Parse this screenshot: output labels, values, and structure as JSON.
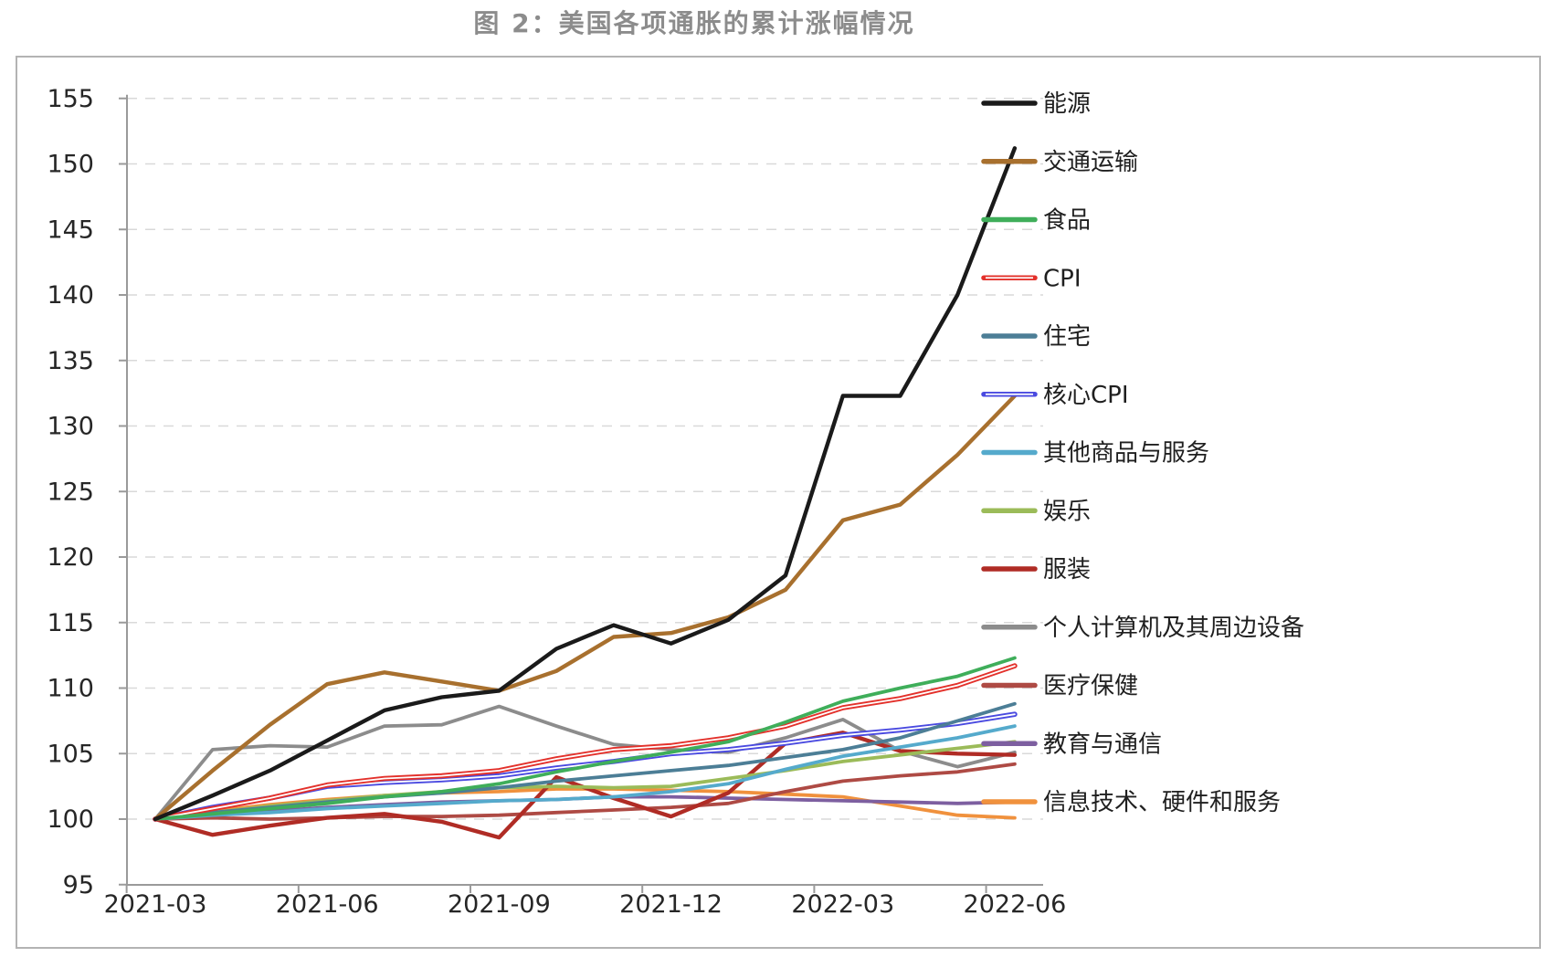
{
  "figure": {
    "title": "图 2：美国各项通胀的累计涨幅情况"
  },
  "chart_data": {
    "type": "line",
    "title": "图 2：美国各项通胀的累计涨幅情况",
    "xlabel": "",
    "ylabel": "",
    "x": [
      "2021-03",
      "2021-04",
      "2021-05",
      "2021-06",
      "2021-07",
      "2021-08",
      "2021-09",
      "2021-10",
      "2021-11",
      "2021-12",
      "2022-01",
      "2022-02",
      "2022-03",
      "2022-04",
      "2022-05",
      "2022-06"
    ],
    "x_tick_labels": [
      "2021-03",
      "2021-06",
      "2021-09",
      "2021-12",
      "2022-03",
      "2022-06"
    ],
    "y_ticks": [
      95,
      100,
      105,
      110,
      115,
      120,
      125,
      130,
      135,
      140,
      145,
      150,
      155
    ],
    "ylim": [
      95,
      155
    ],
    "grid": "horizontal-dashed",
    "legend_position": "right",
    "series": [
      {
        "id": "energy",
        "name": "能源",
        "color": "#1a1a1a",
        "style": "solid",
        "values": [
          100,
          101.8,
          103.7,
          106.0,
          108.3,
          109.3,
          109.8,
          113.0,
          114.8,
          113.4,
          115.2,
          118.6,
          132.3,
          132.3,
          140.0,
          151.2
        ]
      },
      {
        "id": "transport",
        "name": "交通运输",
        "color": "#a8702e",
        "style": "solid",
        "values": [
          100,
          103.7,
          107.2,
          110.3,
          111.2,
          110.5,
          109.8,
          111.3,
          113.9,
          114.2,
          115.4,
          117.5,
          122.8,
          124.0,
          127.8,
          132.3
        ]
      },
      {
        "id": "food",
        "name": "食品",
        "color": "#3fae5a",
        "style": "solid",
        "values": [
          100,
          100.4,
          100.8,
          101.2,
          101.7,
          102.1,
          102.7,
          103.6,
          104.4,
          105.1,
          105.9,
          107.4,
          109.0,
          110.0,
          110.9,
          112.3
        ]
      },
      {
        "id": "cpi",
        "name": "CPI",
        "color": "#e3312b",
        "style": "double",
        "values": [
          100,
          100.8,
          101.6,
          102.6,
          103.1,
          103.3,
          103.7,
          104.6,
          105.3,
          105.6,
          106.2,
          107.1,
          108.5,
          109.2,
          110.2,
          111.7
        ]
      },
      {
        "id": "housing",
        "name": "住宅",
        "color": "#4c7e96",
        "style": "solid",
        "values": [
          100,
          100.5,
          100.9,
          101.3,
          101.7,
          102.0,
          102.4,
          102.9,
          103.3,
          103.7,
          104.1,
          104.7,
          105.3,
          106.2,
          107.5,
          108.8
        ]
      },
      {
        "id": "core-cpi",
        "name": "核心CPI",
        "color": "#4a4ae0",
        "style": "double",
        "values": [
          100,
          100.9,
          101.6,
          102.5,
          102.8,
          103.0,
          103.3,
          103.9,
          104.4,
          105.0,
          105.3,
          105.8,
          106.4,
          106.8,
          107.3,
          108.0
        ]
      },
      {
        "id": "other-goods-services",
        "name": "其他商品与服务",
        "color": "#55aacc",
        "style": "solid",
        "values": [
          100,
          100.3,
          100.5,
          100.8,
          101.0,
          101.2,
          101.4,
          101.5,
          101.7,
          102.1,
          102.7,
          103.8,
          104.8,
          105.5,
          106.2,
          107.1
        ]
      },
      {
        "id": "entertainment",
        "name": "娱乐",
        "color": "#9bbb59",
        "style": "solid",
        "values": [
          100,
          100.5,
          101.0,
          101.4,
          101.8,
          102.1,
          102.4,
          102.5,
          102.4,
          102.5,
          103.1,
          103.7,
          104.4,
          104.9,
          105.4,
          105.9
        ]
      },
      {
        "id": "apparel",
        "name": "服装",
        "color": "#b02c25",
        "style": "solid",
        "values": [
          100,
          98.8,
          99.5,
          100.1,
          100.4,
          99.8,
          98.6,
          103.2,
          101.6,
          100.2,
          102.0,
          105.8,
          106.6,
          105.2,
          105.0,
          104.9
        ]
      },
      {
        "id": "personal-computers",
        "name": "个人计算机及其周边设备",
        "color": "#8c8c8c",
        "style": "solid",
        "values": [
          100,
          105.3,
          105.6,
          105.5,
          107.1,
          107.2,
          108.6,
          107.1,
          105.7,
          105.3,
          105.1,
          106.2,
          107.6,
          105.2,
          104.0,
          105.1
        ]
      },
      {
        "id": "healthcare",
        "name": "医疗保健",
        "color": "#ae4a44",
        "style": "solid",
        "values": [
          100,
          100.1,
          100.0,
          100.1,
          100.2,
          100.2,
          100.3,
          100.5,
          100.7,
          100.9,
          101.2,
          102.1,
          102.9,
          103.3,
          103.6,
          104.2
        ]
      },
      {
        "id": "education-communication",
        "name": "教育与通信",
        "color": "#7d5fa0",
        "style": "solid",
        "values": [
          100,
          100.3,
          100.6,
          100.9,
          101.1,
          101.3,
          101.4,
          101.5,
          101.7,
          101.7,
          101.6,
          101.5,
          101.4,
          101.3,
          101.2,
          101.3
        ]
      },
      {
        "id": "it-hardware-services",
        "name": "信息技术、硬件和服务",
        "color": "#f0913d",
        "style": "solid",
        "values": [
          100,
          100.6,
          101.1,
          101.5,
          101.8,
          102.0,
          102.1,
          102.3,
          102.3,
          102.2,
          102.1,
          101.9,
          101.7,
          101.0,
          100.3,
          100.1
        ]
      }
    ]
  }
}
